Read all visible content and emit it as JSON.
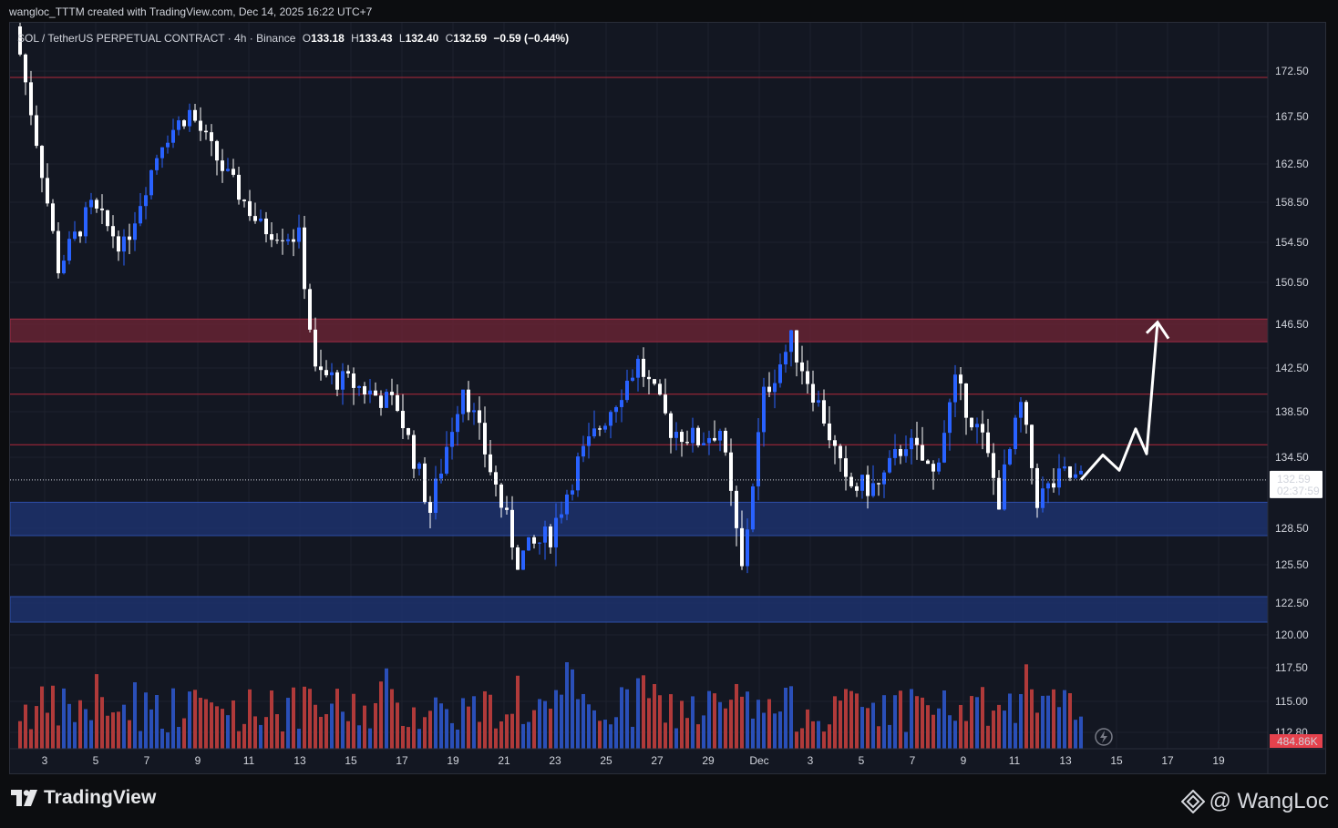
{
  "caption": "wangloc_TTTM created with TradingView.com, Dec 14, 2025 16:22 UTC+7",
  "legend": {
    "symbol": "SOL / TetherUS PERPETUAL CONTRACT · 4h · Binance",
    "open_label": "O",
    "open": "133.18",
    "high_label": "H",
    "high": "133.43",
    "low_label": "L",
    "low": "132.40",
    "close_label": "C",
    "close": "132.59",
    "change": "−0.59 (−0.44%)"
  },
  "price_badge": {
    "price": "132.59",
    "countdown": "02:37:59"
  },
  "volume_badge": "484.86K",
  "footer": {
    "logo_text": "TradingView",
    "watermark": "@ WangLoc"
  },
  "colors": {
    "background": "#131722",
    "grid": "#1e222d",
    "up_candle": "#2962ff",
    "down_candle": "#ffffff",
    "volume_up": "#2a4fb8",
    "volume_down": "#b03a3a",
    "resistance_zone": "#6b2434",
    "support_zone": "#1e3372",
    "level_line": "#b2283a",
    "projection": "#ffffff"
  },
  "chart_data": {
    "type": "candlestick",
    "symbol": "SOL / TetherUS PERPETUAL CONTRACT",
    "interval": "4h",
    "exchange": "Binance",
    "y_ticks": [
      "172.50",
      "167.50",
      "162.50",
      "158.50",
      "154.50",
      "150.50",
      "146.50",
      "142.50",
      "138.50",
      "134.50",
      "128.50",
      "125.50",
      "122.50",
      "120.00",
      "117.50",
      "115.00",
      "112.80"
    ],
    "x_ticks": [
      "3",
      "5",
      "7",
      "9",
      "11",
      "13",
      "15",
      "17",
      "19",
      "21",
      "23",
      "25",
      "27",
      "29",
      "Dec",
      "3",
      "5",
      "7",
      "9",
      "11",
      "13",
      "15",
      "17",
      "19"
    ],
    "ylim": [
      112.8,
      177.5
    ],
    "last_price": 132.59,
    "zones": [
      {
        "kind": "resistance",
        "from": 144.9,
        "to": 147.0
      },
      {
        "kind": "support",
        "from": 127.9,
        "to": 130.7
      },
      {
        "kind": "support",
        "from": 121.0,
        "to": 123.0
      }
    ],
    "levels": [
      171.8,
      140.1,
      135.6
    ],
    "price_path": [
      {
        "t": 0,
        "p": 177.5
      },
      {
        "t": 4,
        "p": 165
      },
      {
        "t": 8,
        "p": 152
      },
      {
        "t": 14,
        "p": 158
      },
      {
        "t": 20,
        "p": 154
      },
      {
        "t": 27,
        "p": 165
      },
      {
        "t": 32,
        "p": 168
      },
      {
        "t": 38,
        "p": 162
      },
      {
        "t": 45,
        "p": 156
      },
      {
        "t": 52,
        "p": 155
      },
      {
        "t": 55,
        "p": 142
      },
      {
        "t": 62,
        "p": 141
      },
      {
        "t": 70,
        "p": 139
      },
      {
        "t": 76,
        "p": 130
      },
      {
        "t": 82,
        "p": 141
      },
      {
        "t": 88,
        "p": 132
      },
      {
        "t": 92,
        "p": 126
      },
      {
        "t": 98,
        "p": 128
      },
      {
        "t": 103,
        "p": 134
      },
      {
        "t": 108,
        "p": 138
      },
      {
        "t": 114,
        "p": 143
      },
      {
        "t": 120,
        "p": 137
      },
      {
        "t": 125,
        "p": 136
      },
      {
        "t": 129,
        "p": 137
      },
      {
        "t": 133,
        "p": 125
      },
      {
        "t": 137,
        "p": 140
      },
      {
        "t": 142,
        "p": 145
      },
      {
        "t": 148,
        "p": 138
      },
      {
        "t": 152,
        "p": 132
      },
      {
        "t": 158,
        "p": 132
      },
      {
        "t": 163,
        "p": 136
      },
      {
        "t": 168,
        "p": 133
      },
      {
        "t": 172,
        "p": 141
      },
      {
        "t": 177,
        "p": 136
      },
      {
        "t": 180,
        "p": 131
      },
      {
        "t": 184,
        "p": 139
      },
      {
        "t": 187,
        "p": 131
      },
      {
        "t": 192,
        "p": 133
      },
      {
        "t": 194,
        "p": 132.6
      }
    ],
    "projection": [
      {
        "t": 194,
        "p": 132.6
      },
      {
        "t": 198,
        "p": 134.7
      },
      {
        "t": 201,
        "p": 133.4
      },
      {
        "t": 204,
        "p": 137.0
      },
      {
        "t": 206,
        "p": 134.8
      },
      {
        "t": 208,
        "p": 146.7
      }
    ],
    "candle_count": 195
  }
}
